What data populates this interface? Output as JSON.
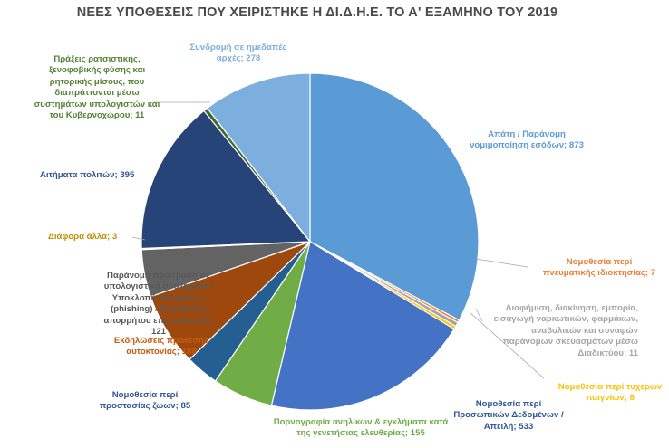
{
  "chart_data": {
    "type": "pie",
    "title": "ΝΕΕΣ ΥΠΟΘΕΣΕΙΣ ΠΟΥ ΧΕΙΡΙΣΤΗΚΕ Η ΔΙ.Δ.Η.Ε. ΤΟ Α' ΕΞΑΜΗΝΟ ΤΟΥ 2019",
    "slices": [
      {
        "label": "Απάτη / Παράνομη νομιμοποίηση εσόδων",
        "value": 873,
        "color": "#5b9bd5"
      },
      {
        "label": "Νομοθεσία περί πνευματικής ιδιοκτησίας",
        "value": 7,
        "color": "#ed7d31"
      },
      {
        "label": "Διαφήμιση, διακίνηση, εμπορία, εισαγωγή ναρκωτικών, φαρμάκων, αναβολικών και συναφών παράνομων σκευασμάτων μέσω Διαδικτύου",
        "value": 11,
        "color": "#a5a5a5"
      },
      {
        "label": "Νομοθεσία περί τυχερών παιγνίων",
        "value": 8,
        "color": "#ffc000"
      },
      {
        "label": "Νομοθεσία περί Προσωπικών Δεδομένων / Απειλή",
        "value": 533,
        "color": "#4472c4"
      },
      {
        "label": "Πορνογραφία ανηλίκων & εγκλήματα κατά της γενετήσιας ελευθερίας",
        "value": 155,
        "color": "#70ad47"
      },
      {
        "label": "Νομοθεσία περί προστασίας ζώων",
        "value": 85,
        "color": "#255e91"
      },
      {
        "label": "Εκδηλώσεις πρόθεσης αυτοκτονίας",
        "value": 188,
        "color": "#9e480e"
      },
      {
        "label": "Παράνομη πρόσβαση σε υπολογιστικά συστήματα / Υποκλοπή δεδομένων (phishing) / Παραβίαση απορρήτου επικοινωνιών",
        "value": 121,
        "color": "#636363"
      },
      {
        "label": "Διάφορα άλλα",
        "value": 3,
        "color": "#997300"
      },
      {
        "label": "Αιτήματα πολιτών",
        "value": 395,
        "color": "#264478"
      },
      {
        "label": "Πράξεις ρατσιστικής, ξενοφοβικής φύσης και ρητορικής μίσους, που διαπράττονται μέσω συστημάτων υπολογιστών και του Κυβερνοχώρου",
        "value": 11,
        "color": "#43682b"
      },
      {
        "label": "Συνδρομή σε ημεδαπές αρχές",
        "value": 278,
        "color": "#7cafdd"
      }
    ],
    "label_colors": [
      "#5b9bd5",
      "#ed7d31",
      "#a5a5a5",
      "#ffc000",
      "#2f5597",
      "#70ad47",
      "#2f5597",
      "#c55a11",
      "#595959",
      "#bf9000",
      "#2f5597",
      "#548235",
      "#7cafdd"
    ],
    "data_labels": [
      "Απάτη / Παράνομη\nνομιμοποίηση εσόδων; 873",
      "Νομοθεσία περί\nπνευματικής ιδιοκτησίας; 7",
      "Διαφήμιση, διακίνηση, εμπορία,\nεισαγωγή ναρκωτικών, φαρμάκων,\nαναβολικών και συναφών\nπαράνομων σκευασμάτων μέσω\nΔιαδικτύου; 11",
      "Νομοθεσία περί τυχερών\nπαιγνίων; 8",
      "Νομοθεσία περί\nΠροσωπικών Δεδομένων /\nΑπειλή; 533",
      "Πορνογραφία ανηλίκων & εγκλήματα κατά\nτης γενετήσιας ελευθερίας; 155",
      "Νομοθεσία περί\nπροστασίας ζώων; 85",
      "Εκδηλώσεις πρόθεσης\nαυτοκτονίας; 188",
      "Παράνομη πρόσβαση σε\nυπολογιστικά συστήματα /\nΥποκλοπή δεδομένων\n(phishing) / Παραβίαση\nαπορρήτου επικοινωνιών;\n121",
      "Διάφορα άλλα; 3",
      "Αιτήματα πολιτών; 395",
      "Πράξεις ρατσιστικής,\nξενοφοβικής φύσης και\nρητορικής μίσους, που\nδιαπράττονται μέσω\nσυστημάτων υπολογιστών και\nτου Κυβερνοχώρου; 11",
      "Συνδρομή σε ημεδαπές\nαρχές; 278"
    ]
  }
}
